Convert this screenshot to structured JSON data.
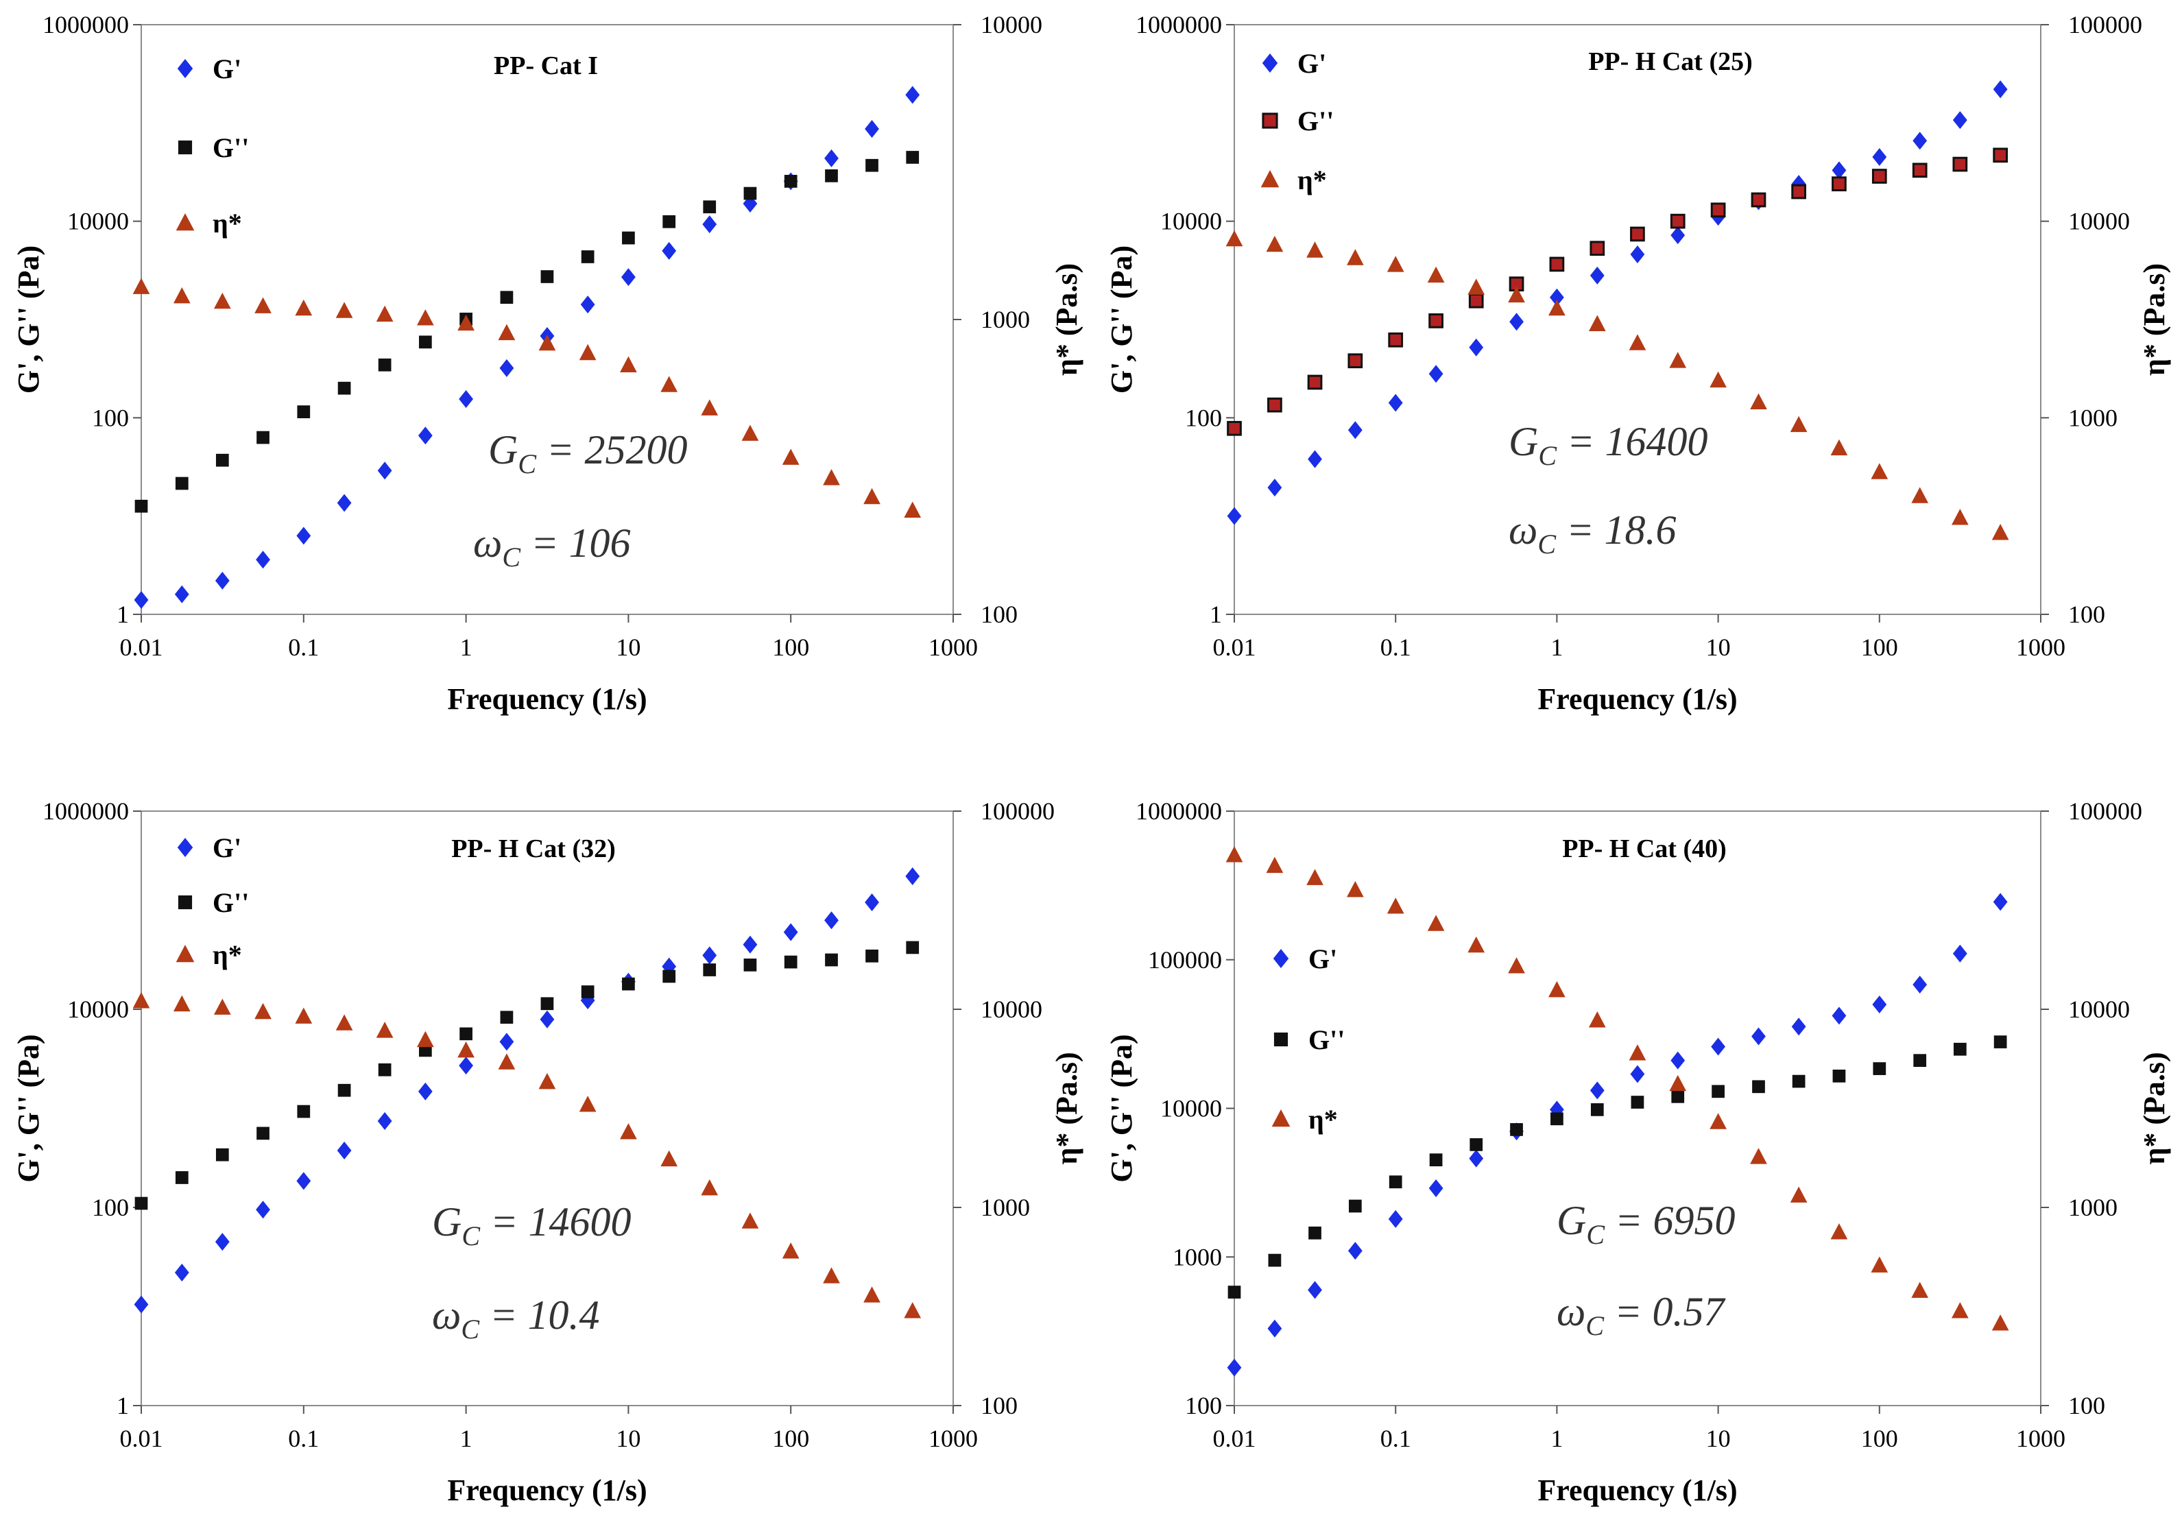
{
  "colors": {
    "g_prime": "#1a2ee6",
    "g_double": "#111111",
    "eta": "#b33a14",
    "g_double_panel2_fill": "#b22222"
  },
  "chart_data": [
    {
      "type": "scatter",
      "title": "PP- Cat I",
      "xlabel": "Frequency (1/s)",
      "ylabel": "G', G'' (Pa)",
      "y2label": "η* (Pa.s)",
      "xscale": "log",
      "yscale": "log",
      "y2scale": "log",
      "xlim": [
        0.01,
        1000
      ],
      "ylim": [
        1,
        1000000
      ],
      "y2lim": [
        100,
        10000
      ],
      "xticks": [
        "0.01",
        "0.1",
        "1",
        "10",
        "100",
        "1000"
      ],
      "yticks": [
        "1",
        "100",
        "10000",
        "1000000"
      ],
      "y2ticks": [
        "100",
        "1000",
        "10000"
      ],
      "legend": [
        "G'",
        "G''",
        "η*"
      ],
      "legend_position": "top-left",
      "x": [
        0.01,
        0.0178,
        0.0316,
        0.0562,
        0.1,
        0.178,
        0.316,
        0.562,
        1,
        1.78,
        3.16,
        5.62,
        10,
        17.8,
        31.6,
        56.2,
        100,
        178,
        316,
        562
      ],
      "series": [
        {
          "name": "G'",
          "axis": "left",
          "marker": "diamond",
          "values": [
            1.4,
            1.6,
            2.2,
            3.6,
            6.3,
            13.6,
            29,
            66,
            155,
            320,
            680,
            1420,
            2700,
            5000,
            9300,
            15100,
            25500,
            43700,
            87000,
            193000
          ]
        },
        {
          "name": "G''",
          "axis": "left",
          "marker": "square",
          "values": [
            12.6,
            21.5,
            37,
            63,
            115,
            200,
            345,
            590,
            1010,
            1680,
            2730,
            4350,
            6760,
            9900,
            14000,
            19200,
            25500,
            29000,
            37000,
            44700
          ]
        },
        {
          "name": "η*",
          "axis": "right",
          "marker": "triangle",
          "values": [
            1290,
            1200,
            1150,
            1110,
            1090,
            1070,
            1040,
            1010,
            970,
            900,
            830,
            770,
            700,
            600,
            500,
            410,
            340,
            290,
            250,
            225
          ]
        }
      ],
      "annotations": [
        {
          "symbol": "G",
          "sub": "C",
          "text": " = 25200"
        },
        {
          "symbol": "ω",
          "sub": "C",
          "text": " = 106"
        }
      ]
    },
    {
      "type": "scatter",
      "title": "PP- H Cat (25)",
      "xlabel": "Frequency (1/s)",
      "ylabel": "G', G'' (Pa)",
      "y2label": "η* (Pa.s)",
      "xscale": "log",
      "yscale": "log",
      "y2scale": "log",
      "xlim": [
        0.01,
        1000
      ],
      "ylim": [
        1,
        1000000
      ],
      "y2lim": [
        100,
        100000
      ],
      "xticks": [
        "0.01",
        "0.1",
        "1",
        "10",
        "100",
        "1000"
      ],
      "yticks": [
        "1",
        "100",
        "10000",
        "1000000"
      ],
      "y2ticks": [
        "100",
        "1000",
        "10000",
        "100000"
      ],
      "legend": [
        "G'",
        "G''",
        "η*"
      ],
      "legend_position": "top-left",
      "x": [
        0.01,
        0.0178,
        0.0316,
        0.0562,
        0.1,
        0.178,
        0.316,
        0.562,
        1,
        1.78,
        3.16,
        5.62,
        10,
        17.8,
        31.6,
        56.2,
        100,
        178,
        316,
        562
      ],
      "series": [
        {
          "name": "G'",
          "axis": "left",
          "marker": "diamond",
          "values": [
            10,
            19.5,
            38,
            75,
            142,
            280,
            520,
            950,
            1680,
            2800,
            4600,
            7200,
            11100,
            16000,
            24000,
            33000,
            45000,
            66000,
            107000,
            220000
          ]
        },
        {
          "name": "G''",
          "axis": "left",
          "marker": "square",
          "values": [
            78,
            135,
            230,
            380,
            620,
            970,
            1550,
            2300,
            3650,
            5300,
            7400,
            10000,
            13000,
            16500,
            20000,
            24000,
            28700,
            33000,
            38000,
            47000
          ]
        },
        {
          "name": "η*",
          "axis": "right",
          "marker": "triangle",
          "values": [
            8100,
            7600,
            7100,
            6500,
            6000,
            5300,
            4600,
            4200,
            3600,
            3000,
            2400,
            1950,
            1550,
            1200,
            920,
            700,
            530,
            400,
            310,
            260
          ]
        }
      ],
      "annotations": [
        {
          "symbol": "G",
          "sub": "C",
          "text": " = 16400"
        },
        {
          "symbol": "ω",
          "sub": "C",
          "text": " = 18.6"
        }
      ]
    },
    {
      "type": "scatter",
      "title": "PP- H Cat (32)",
      "xlabel": "Frequency (1/s)",
      "ylabel": "G', G'' (Pa)",
      "y2label": "η* (Pa.s)",
      "xscale": "log",
      "yscale": "log",
      "y2scale": "log",
      "xlim": [
        0.01,
        1000
      ],
      "ylim": [
        1,
        1000000
      ],
      "y2lim": [
        100,
        100000
      ],
      "xticks": [
        "0.01",
        "0.1",
        "1",
        "10",
        "100",
        "1000"
      ],
      "yticks": [
        "1",
        "100",
        "10000",
        "1000000"
      ],
      "y2ticks": [
        "100",
        "1000",
        "10000",
        "100000"
      ],
      "legend": [
        "G'",
        "G''",
        "η*"
      ],
      "legend_position": "top-left",
      "x": [
        0.01,
        0.0178,
        0.0316,
        0.0562,
        0.1,
        0.178,
        0.316,
        0.562,
        1,
        1.78,
        3.16,
        5.62,
        10,
        17.8,
        31.6,
        56.2,
        100,
        178,
        316,
        562
      ],
      "series": [
        {
          "name": "G'",
          "axis": "left",
          "marker": "diamond",
          "values": [
            10.5,
            22,
            45,
            95,
            185,
            375,
            745,
            1480,
            2700,
            4700,
            7900,
            12300,
            19000,
            27000,
            35000,
            45000,
            60000,
            79000,
            120000,
            220000
          ]
        },
        {
          "name": "G''",
          "axis": "left",
          "marker": "square",
          "values": [
            110,
            200,
            340,
            560,
            930,
            1520,
            2450,
            3850,
            5650,
            8300,
            11400,
            15000,
            18000,
            21500,
            25000,
            28000,
            30000,
            31500,
            34500,
            42000
          ]
        },
        {
          "name": "η*",
          "axis": "right",
          "marker": "triangle",
          "values": [
            11000,
            10600,
            10200,
            9700,
            9200,
            8500,
            7800,
            7000,
            6200,
            5400,
            4300,
            3300,
            2400,
            1750,
            1250,
            850,
            600,
            450,
            360,
            300
          ]
        }
      ],
      "annotations": [
        {
          "symbol": "G",
          "sub": "C",
          "text": " = 14600"
        },
        {
          "symbol": "ω",
          "sub": "C",
          "text": " = 10.4"
        }
      ]
    },
    {
      "type": "scatter",
      "title": "PP- H Cat (40)",
      "xlabel": "Frequency (1/s)",
      "ylabel": "G', G'' (Pa)",
      "y2label": "η* (Pa.s)",
      "xscale": "log",
      "yscale": "log",
      "y2scale": "log",
      "xlim": [
        0.01,
        1000
      ],
      "ylim": [
        100,
        1000000
      ],
      "y2lim": [
        100,
        100000
      ],
      "xticks": [
        "0.01",
        "0.1",
        "1",
        "10",
        "100",
        "1000"
      ],
      "yticks": [
        "100",
        "1000",
        "10000",
        "100000",
        "1000000"
      ],
      "y2ticks": [
        "100",
        "1000",
        "10000",
        "100000"
      ],
      "legend": [
        "G'",
        "G''",
        "η*"
      ],
      "legend_position": "middle-left",
      "x": [
        0.01,
        0.0178,
        0.0316,
        0.0562,
        0.1,
        0.178,
        0.316,
        0.562,
        1,
        1.78,
        3.16,
        5.62,
        10,
        17.8,
        31.6,
        56.2,
        100,
        178,
        316,
        562
      ],
      "series": [
        {
          "name": "G'",
          "axis": "left",
          "marker": "diamond",
          "values": [
            180,
            330,
            600,
            1100,
            1800,
            2900,
            4600,
            7000,
            9800,
            13200,
            17000,
            21000,
            26000,
            30500,
            35500,
            42000,
            50000,
            68000,
            110000,
            245000
          ]
        },
        {
          "name": "G''",
          "axis": "left",
          "marker": "square",
          "values": [
            580,
            950,
            1450,
            2200,
            3200,
            4500,
            5700,
            7200,
            8500,
            9800,
            11000,
            12000,
            13000,
            14000,
            15200,
            16500,
            18500,
            21000,
            25000,
            28000
          ]
        },
        {
          "name": "η*",
          "axis": "right",
          "marker": "triangle",
          "values": [
            60000,
            53000,
            46000,
            40000,
            33000,
            27000,
            21000,
            16500,
            12500,
            8800,
            6000,
            4200,
            2700,
            1800,
            1150,
            750,
            510,
            380,
            300,
            260
          ]
        }
      ],
      "annotations": [
        {
          "symbol": "G",
          "sub": "C",
          "text": " = 6950"
        },
        {
          "symbol": "ω",
          "sub": "C",
          "text": " = 0.57"
        }
      ]
    }
  ]
}
